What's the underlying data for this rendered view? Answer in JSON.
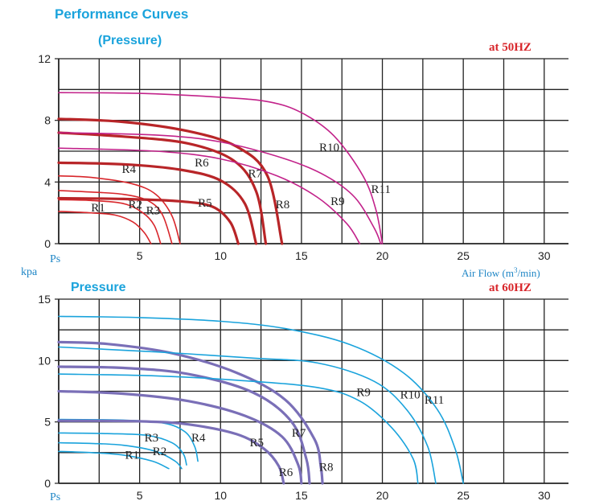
{
  "chart_data": [
    {
      "type": "line",
      "title": "Performance Curves",
      "subtitle": "(Pressure)",
      "frequency_label": "at 50HZ",
      "y_axis_name": "Ps",
      "y_unit": "kpa",
      "xlabel_main": "Air Flow (m",
      "xlabel_sup": "3",
      "xlabel_tail": "/min)",
      "xlim": [
        0,
        31.5
      ],
      "ylim": [
        0,
        12
      ],
      "x_ticks": [
        "5",
        "10",
        "15",
        "20",
        "25",
        "30"
      ],
      "x_tick_values": [
        5,
        10,
        15,
        20,
        25,
        30
      ],
      "y_ticks": [
        "0",
        "4",
        "8",
        "12"
      ],
      "y_tick_values": [
        0,
        4,
        8,
        12
      ],
      "grid": true,
      "series": [
        {
          "name": "R1",
          "color": "#d8262b",
          "width": 1.6,
          "label_at": [
            2,
            2.1
          ],
          "points": [
            [
              0,
              2.1
            ],
            [
              2,
              2.0
            ],
            [
              3.5,
              1.85
            ],
            [
              4.6,
              1.4
            ],
            [
              5.3,
              0.7
            ],
            [
              5.7,
              0
            ]
          ]
        },
        {
          "name": "R2",
          "color": "#d8262b",
          "width": 1.6,
          "label_at": [
            4.3,
            2.3
          ],
          "points": [
            [
              0,
              2.85
            ],
            [
              2,
              2.8
            ],
            [
              4,
              2.6
            ],
            [
              5.2,
              2.0
            ],
            [
              5.9,
              1.2
            ],
            [
              6.3,
              0
            ]
          ]
        },
        {
          "name": "R3",
          "color": "#d8262b",
          "width": 1.6,
          "label_at": [
            5.4,
            1.9
          ],
          "points": [
            [
              0,
              3.45
            ],
            [
              2,
              3.35
            ],
            [
              4,
              3.2
            ],
            [
              5.5,
              2.8
            ],
            [
              6.4,
              1.9
            ],
            [
              7.0,
              0
            ]
          ]
        },
        {
          "name": "R4",
          "color": "#d8262b",
          "width": 1.6,
          "label_at": [
            3.9,
            4.6
          ],
          "points": [
            [
              0,
              4.4
            ],
            [
              2,
              4.3
            ],
            [
              4.5,
              3.9
            ],
            [
              6,
              3.2
            ],
            [
              7,
              1.8
            ],
            [
              7.5,
              0
            ]
          ]
        },
        {
          "name": "R5",
          "color": "#b82528",
          "width": 3.2,
          "label_at": [
            8.6,
            2.4
          ],
          "points": [
            [
              0,
              2.95
            ],
            [
              4,
              2.9
            ],
            [
              7.5,
              2.75
            ],
            [
              9.5,
              2.4
            ],
            [
              10.6,
              1.4
            ],
            [
              11.1,
              0
            ]
          ]
        },
        {
          "name": "R6",
          "color": "#b82528",
          "width": 3.2,
          "label_at": [
            8.4,
            5.0
          ],
          "points": [
            [
              0,
              5.25
            ],
            [
              4,
              5.15
            ],
            [
              7.5,
              4.8
            ],
            [
              10,
              4.1
            ],
            [
              11.5,
              2.6
            ],
            [
              12.2,
              0
            ]
          ]
        },
        {
          "name": "R7",
          "color": "#b82528",
          "width": 3.2,
          "label_at": [
            11.7,
            4.3
          ],
          "points": [
            [
              0,
              7.2
            ],
            [
              4,
              6.95
            ],
            [
              8,
              6.5
            ],
            [
              10.8,
              5.4
            ],
            [
              12.2,
              3.4
            ],
            [
              12.8,
              0
            ]
          ]
        },
        {
          "name": "R8",
          "color": "#b82528",
          "width": 3.2,
          "label_at": [
            13.4,
            2.3
          ],
          "points": [
            [
              0,
              8.1
            ],
            [
              4,
              7.9
            ],
            [
              8,
              7.3
            ],
            [
              11,
              6.3
            ],
            [
              12.9,
              4.4
            ],
            [
              13.8,
              0
            ]
          ]
        },
        {
          "name": "R9",
          "color": "#c2228a",
          "width": 1.6,
          "label_at": [
            16.8,
            2.5
          ],
          "points": [
            [
              0,
              6.2
            ],
            [
              6,
              6.0
            ],
            [
              10,
              5.5
            ],
            [
              13.5,
              4.4
            ],
            [
              16,
              3.0
            ],
            [
              17.8,
              1.3
            ],
            [
              18.6,
              0
            ]
          ]
        },
        {
          "name": "R10",
          "color": "#c2228a",
          "width": 1.6,
          "label_at": [
            16.1,
            6.0
          ],
          "points": [
            [
              0,
              7.2
            ],
            [
              6,
              7.05
            ],
            [
              10,
              6.6
            ],
            [
              14,
              5.5
            ],
            [
              16.5,
              4.4
            ],
            [
              18.3,
              3.0
            ],
            [
              19.5,
              1.0
            ],
            [
              19.9,
              0
            ]
          ]
        },
        {
          "name": "R11",
          "color": "#c2228a",
          "width": 1.6,
          "label_at": [
            19.3,
            3.3
          ],
          "points": [
            [
              0,
              9.8
            ],
            [
              5,
              9.75
            ],
            [
              10,
              9.5
            ],
            [
              13,
              9.2
            ],
            [
              15,
              8.5
            ],
            [
              17,
              7.0
            ],
            [
              18.8,
              4.4
            ],
            [
              19.6,
              2.2
            ],
            [
              20,
              0
            ]
          ]
        }
      ]
    },
    {
      "type": "line",
      "title": "Pressure",
      "frequency_label": "at 60HZ",
      "y_axis_name": "Ps",
      "xlim": [
        0,
        31.5
      ],
      "ylim": [
        0,
        15
      ],
      "x_ticks": [
        "5",
        "10",
        "15",
        "20",
        "25",
        "30"
      ],
      "x_tick_values": [
        5,
        10,
        15,
        20,
        25,
        30
      ],
      "y_ticks": [
        "0",
        "5",
        "10",
        "15"
      ],
      "y_tick_values": [
        0,
        5,
        10,
        15
      ],
      "grid": true,
      "series": [
        {
          "name": "R1",
          "color": "#1aa3dc",
          "width": 1.6,
          "label_at": [
            4.1,
            2.0
          ],
          "points": [
            [
              0,
              2.6
            ],
            [
              2,
              2.5
            ],
            [
              4,
              2.3
            ],
            [
              5.8,
              1.8
            ],
            [
              6.8,
              1.2
            ]
          ]
        },
        {
          "name": "R2",
          "color": "#1aa3dc",
          "width": 1.6,
          "label_at": [
            5.8,
            2.3
          ],
          "points": [
            [
              0,
              3.3
            ],
            [
              2,
              3.25
            ],
            [
              4,
              3.1
            ],
            [
              6,
              2.6
            ],
            [
              7.2,
              1.8
            ],
            [
              7.6,
              1.2
            ]
          ]
        },
        {
          "name": "R3",
          "color": "#1aa3dc",
          "width": 1.6,
          "label_at": [
            5.3,
            3.4
          ],
          "points": [
            [
              0,
              4.1
            ],
            [
              3,
              4.05
            ],
            [
              5.5,
              3.9
            ],
            [
              7,
              3.3
            ],
            [
              7.7,
              2.4
            ],
            [
              7.9,
              1.5
            ]
          ]
        },
        {
          "name": "R4",
          "color": "#1aa3dc",
          "width": 1.6,
          "label_at": [
            8.2,
            3.4
          ],
          "points": [
            [
              0,
              5.2
            ],
            [
              4,
              5.15
            ],
            [
              6.5,
              4.9
            ],
            [
              7.8,
              4.2
            ],
            [
              8.4,
              3.0
            ],
            [
              8.6,
              1.8
            ]
          ]
        },
        {
          "name": "R5",
          "color": "#7a6fb7",
          "width": 3.2,
          "label_at": [
            11.8,
            3.0
          ],
          "points": [
            [
              0,
              5.1
            ],
            [
              5,
              5.05
            ],
            [
              8,
              4.8
            ],
            [
              11,
              4.0
            ],
            [
              12.7,
              2.8
            ],
            [
              13.6,
              1.4
            ],
            [
              13.9,
              0
            ]
          ]
        },
        {
          "name": "R6",
          "color": "#7a6fb7",
          "width": 3.2,
          "label_at": [
            13.6,
            0.6
          ],
          "points": [
            [
              0,
              7.5
            ],
            [
              4,
              7.3
            ],
            [
              8,
              6.7
            ],
            [
              11.5,
              5.5
            ],
            [
              13.8,
              3.8
            ],
            [
              14.8,
              1.5
            ],
            [
              15.0,
              0
            ]
          ]
        },
        {
          "name": "R7",
          "color": "#7a6fb7",
          "width": 3.2,
          "label_at": [
            14.4,
            3.8
          ],
          "points": [
            [
              0,
              9.5
            ],
            [
              4,
              9.4
            ],
            [
              8,
              8.9
            ],
            [
              12,
              7.4
            ],
            [
              14.4,
              5.0
            ],
            [
              15.3,
              2.0
            ],
            [
              15.5,
              0
            ]
          ]
        },
        {
          "name": "R8",
          "color": "#7a6fb7",
          "width": 3.2,
          "label_at": [
            16.1,
            1.0
          ],
          "points": [
            [
              0,
              11.5
            ],
            [
              3,
              11.35
            ],
            [
              7,
              10.6
            ],
            [
              11,
              9.0
            ],
            [
              14,
              6.8
            ],
            [
              15.8,
              3.6
            ],
            [
              16.2,
              1.3
            ],
            [
              16.3,
              0
            ]
          ]
        },
        {
          "name": "R9",
          "color": "#1aa3dc",
          "width": 1.6,
          "label_at": [
            18.4,
            7.1
          ],
          "points": [
            [
              0,
              8.9
            ],
            [
              6,
              8.75
            ],
            [
              11,
              8.4
            ],
            [
              16,
              7.8
            ],
            [
              18.6,
              6.7
            ],
            [
              20.6,
              4.5
            ],
            [
              21.9,
              2.0
            ],
            [
              22.2,
              0
            ]
          ]
        },
        {
          "name": "R10",
          "color": "#1aa3dc",
          "width": 1.6,
          "label_at": [
            21.1,
            6.9
          ],
          "points": [
            [
              0,
              11.1
            ],
            [
              6,
              10.7
            ],
            [
              12,
              10.2
            ],
            [
              16,
              9.8
            ],
            [
              19.5,
              8.3
            ],
            [
              21.5,
              6.0
            ],
            [
              22.8,
              3.0
            ],
            [
              23.3,
              0
            ]
          ]
        },
        {
          "name": "R11",
          "color": "#1aa3dc",
          "width": 1.6,
          "label_at": [
            22.6,
            6.5
          ],
          "points": [
            [
              0,
              13.6
            ],
            [
              5,
              13.5
            ],
            [
              10,
              13.2
            ],
            [
              14,
              12.6
            ],
            [
              18,
              11.3
            ],
            [
              21.3,
              9.0
            ],
            [
              23.4,
              6.0
            ],
            [
              24.5,
              2.8
            ],
            [
              25,
              0
            ]
          ]
        }
      ]
    }
  ]
}
